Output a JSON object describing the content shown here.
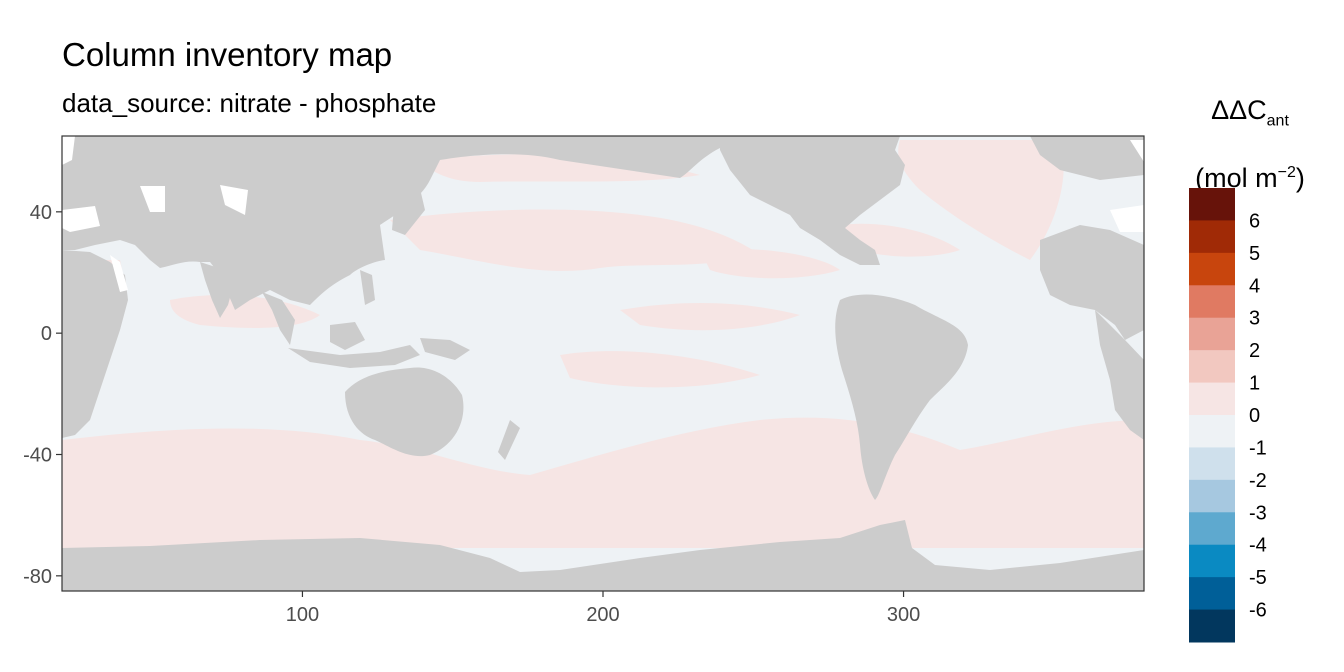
{
  "title": "Column inventory map",
  "subtitle": "data_source: nitrate - phosphate",
  "legend": {
    "title_line1_main": "ΔΔC",
    "title_line1_sub": "ant",
    "title_line2_pre": "(mol m",
    "title_line2_sup": "−2",
    "title_line2_post": ")"
  },
  "chart_data": {
    "type": "heatmap",
    "title": "Column inventory map",
    "subtitle": "data_source: nitrate - phosphate",
    "x_ticks": [
      "100",
      "200",
      "300"
    ],
    "y_ticks": [
      "40",
      "0",
      "-40",
      "-80"
    ],
    "x_tick_values": [
      100,
      200,
      300
    ],
    "y_tick_values": [
      40,
      0,
      -40,
      -80
    ],
    "xlim": [
      20,
      380
    ],
    "ylim": [
      -85,
      65
    ],
    "color_scale": {
      "labels": [
        "6",
        "5",
        "4",
        "3",
        "2",
        "1",
        "0",
        "-1",
        "-2",
        "-3",
        "-4",
        "-5",
        "-6"
      ],
      "colors": [
        "#67130a",
        "#a02a06",
        "#c8450d",
        "#e07a62",
        "#e9a396",
        "#f2c8c0",
        "#f6e5e4",
        "#eef2f5",
        "#cfe0ec",
        "#a6c8e0",
        "#5ea9cf",
        "#0a8ac2",
        "#005f98",
        "#02375e"
      ]
    },
    "land_color": "#cccccc",
    "summary": "Ocean values mostly between -1 and 1 mol m-2; bands of 0 to 1 in the Southern Ocean, North Pacific, subtropical gyres and North Atlantic."
  }
}
